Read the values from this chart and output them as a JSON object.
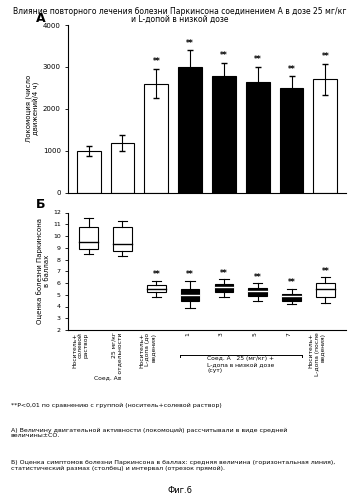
{
  "title_line1": "Влияние повторного лечения болезни Паркинсона соединением А в дозе 25 мг/кг",
  "title_line2": "и L-допой в низкой дозе",
  "panel_a_label": "А",
  "panel_b_label": "Б",
  "bar_values": [
    1000,
    1180,
    2600,
    3000,
    2780,
    2650,
    2500,
    2700
  ],
  "bar_errors": [
    120,
    200,
    350,
    400,
    320,
    350,
    280,
    380
  ],
  "bar_colors": [
    "white",
    "white",
    "white",
    "black",
    "black",
    "black",
    "black",
    "white"
  ],
  "bar_sig": [
    false,
    false,
    true,
    true,
    true,
    true,
    true,
    true
  ],
  "ylabel_a": "Локомоция (число\nдвижений/4 ч)",
  "ylim_a": [
    0,
    4000
  ],
  "yticks_a": [
    0,
    1000,
    2000,
    3000,
    4000
  ],
  "box_medians": [
    9.5,
    9.3,
    5.5,
    5.0,
    5.7,
    5.3,
    4.9,
    5.5
  ],
  "box_q1": [
    8.9,
    8.7,
    5.2,
    4.5,
    5.2,
    4.9,
    4.5,
    4.8
  ],
  "box_q3": [
    10.8,
    10.8,
    5.8,
    5.5,
    5.9,
    5.6,
    5.1,
    6.0
  ],
  "box_whisker_low": [
    8.5,
    8.3,
    4.8,
    3.9,
    4.8,
    4.5,
    4.2,
    4.3
  ],
  "box_whisker_high": [
    11.5,
    11.3,
    6.2,
    6.2,
    6.3,
    6.0,
    5.5,
    6.5
  ],
  "box_colors": [
    "white",
    "white",
    "white",
    "black",
    "black",
    "black",
    "black",
    "white"
  ],
  "box_sig": [
    false,
    false,
    true,
    true,
    true,
    true,
    true,
    true
  ],
  "ylabel_b": "Оценка болезни Паркинсона\nв баллах",
  "ylim_b": [
    2,
    12
  ],
  "yticks_b": [
    2,
    3,
    4,
    5,
    6,
    7,
    8,
    9,
    10,
    11,
    12
  ],
  "xlabel_groups": [
    "Носитель+\nсолевой\nраствор",
    "25 мг/кг\nв отдельности",
    "Носитель+\nL-допа (до\nведения)",
    "1",
    "3",
    "5",
    "7",
    "Носитель+\nL-допа (после\nведения)"
  ],
  "xlabel_sub1": "Соед. А",
  "xlabel_sub2": "Соед. А   25 (мг/кг) +\nL-допа в низкой дозе\n(сут)",
  "footnote1": "**P<0,01 по сравнению с группой (носитель+солевой раствор)",
  "footnote2": "А) Величину двигательной активности (локомоций) рассчитывали в виде средней\nвеличины±СО.",
  "footnote3": "Б) Оценка симптомов болезни Паркинсона в баллах: средняя величина (горизонтальная линия),\nстатистический размах (столбец) и интервал (отрезок прямой).",
  "fig_label": "Фиг.6",
  "background_color": "#ffffff"
}
